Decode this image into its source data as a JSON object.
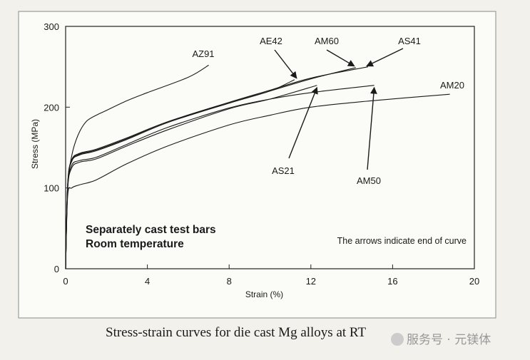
{
  "chart_data": {
    "type": "line",
    "title": "",
    "xlabel": "Strain (%)",
    "ylabel": "Stress (MPa)",
    "xlim": [
      0,
      20
    ],
    "ylim": [
      0,
      300
    ],
    "xticks": [
      "0",
      "4",
      "8",
      "12",
      "16",
      "20"
    ],
    "yticks": [
      "0",
      "100",
      "200",
      "300"
    ],
    "grid": false,
    "annotations": {
      "box_line1": "Separately cast test bars",
      "box_line2": "Room temperature",
      "note": "The arrows indicate end of curve"
    },
    "series": [
      {
        "name": "AZ91",
        "x": [
          0,
          0.1,
          0.3,
          0.6,
          1,
          1.5,
          2,
          3,
          4,
          6,
          7
        ],
        "y": [
          0,
          100,
          140,
          165,
          182,
          190,
          196,
          208,
          218,
          237,
          252
        ]
      },
      {
        "name": "AE42",
        "x": [
          0,
          0.1,
          0.3,
          0.7,
          1.5,
          3,
          5,
          8,
          10,
          11.2
        ],
        "y": [
          0,
          105,
          135,
          143,
          148,
          162,
          182,
          205,
          220,
          234
        ]
      },
      {
        "name": "AM60",
        "x": [
          0,
          0.1,
          0.3,
          0.7,
          1.5,
          3,
          5,
          8,
          10,
          12,
          14.2
        ],
        "y": [
          0,
          103,
          133,
          141,
          146,
          160,
          181,
          205,
          220,
          235,
          249
        ]
      },
      {
        "name": "AS41",
        "x": [
          0,
          0.1,
          0.3,
          0.7,
          1.5,
          3,
          5,
          8,
          10,
          12,
          14.8
        ],
        "y": [
          0,
          104,
          134,
          142,
          147,
          161,
          182,
          206,
          221,
          236,
          250
        ]
      },
      {
        "name": "AS21",
        "x": [
          0,
          0.1,
          0.3,
          0.7,
          1.5,
          3,
          5,
          8,
          10,
          12.3
        ],
        "y": [
          0,
          98,
          125,
          132,
          136,
          152,
          172,
          198,
          210,
          227
        ]
      },
      {
        "name": "AM50",
        "x": [
          0,
          0.1,
          0.3,
          0.7,
          1.5,
          3,
          5,
          8,
          10,
          12,
          15.1
        ],
        "y": [
          0,
          100,
          128,
          134,
          138,
          154,
          175,
          199,
          210,
          218,
          227
        ]
      },
      {
        "name": "AM20",
        "x": [
          0,
          0.1,
          0.3,
          0.7,
          1.5,
          3,
          5,
          8,
          10,
          12,
          15,
          18.8
        ],
        "y": [
          0,
          90,
          100,
          104,
          110,
          130,
          152,
          178,
          190,
          200,
          208,
          216
        ]
      }
    ]
  },
  "caption": "Stress-strain curves for die cast Mg alloys at RT",
  "watermark": "服务号 · 元镁体",
  "colors": {
    "paper": "#f2f1ec",
    "ink": "#1a1a1a",
    "watermark": "#8f8f8f"
  }
}
